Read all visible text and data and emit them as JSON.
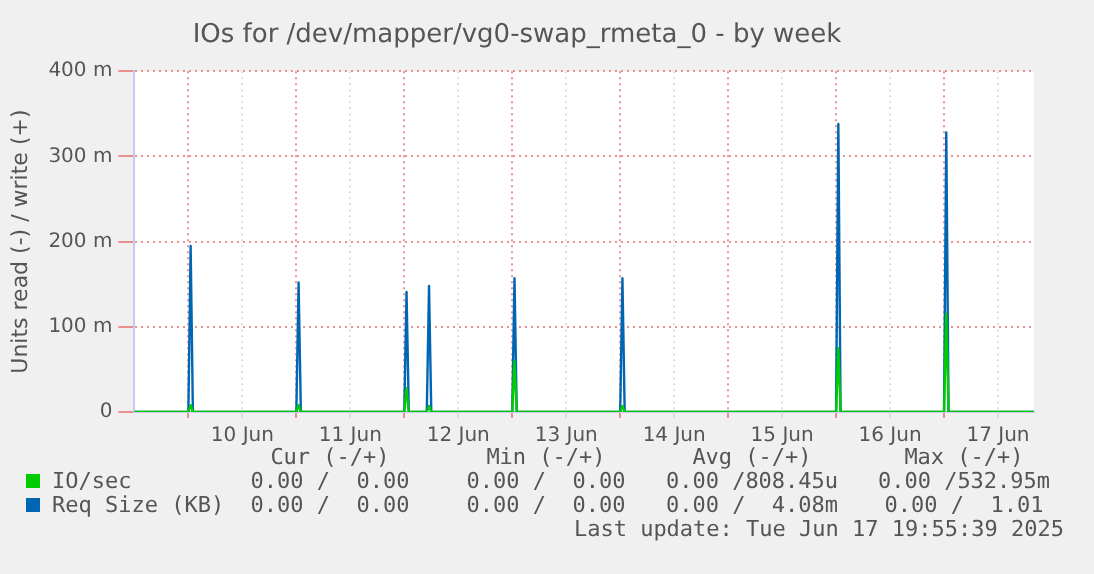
{
  "chart_data": {
    "type": "line",
    "title": "IOs for /dev/mapper/vg0-swap_rmeta_0 - by week",
    "ylabel": "Units read (-) / write (+)",
    "x": [
      "2025-06-09T12:00",
      "2025-06-10T00:00",
      "2025-06-10T00:30",
      "2025-06-10T01:00",
      "2025-06-11T00:00",
      "2025-06-11T00:30",
      "2025-06-11T01:00",
      "2025-06-12T00:00",
      "2025-06-12T00:30",
      "2025-06-12T01:00",
      "2025-06-12T05:00",
      "2025-06-12T05:30",
      "2025-06-12T06:00",
      "2025-06-13T00:00",
      "2025-06-13T00:30",
      "2025-06-13T01:00",
      "2025-06-14T00:00",
      "2025-06-14T00:30",
      "2025-06-14T01:00",
      "2025-06-16T00:00",
      "2025-06-16T00:30",
      "2025-06-16T01:00",
      "2025-06-17T00:00",
      "2025-06-17T00:30",
      "2025-06-17T01:00",
      "2025-06-17T20:00"
    ],
    "series": [
      {
        "name": "IO/sec",
        "color": "#00cc00",
        "values": [
          0,
          0,
          8,
          0,
          0,
          8,
          0,
          0,
          28,
          0,
          0,
          7,
          0,
          0,
          60,
          0,
          0,
          7,
          0,
          0,
          75,
          0,
          0,
          115,
          0,
          0
        ]
      },
      {
        "name": "Req Size (KB)",
        "color": "#0066b3",
        "values": [
          0,
          0,
          195,
          0,
          0,
          152,
          0,
          0,
          141,
          0,
          0,
          148,
          0,
          0,
          157,
          0,
          0,
          157,
          0,
          0,
          338,
          0,
          0,
          328,
          0,
          0
        ]
      }
    ],
    "xlim": [
      "2025-06-09T12:00",
      "2025-06-17T20:00"
    ],
    "xticks": [
      {
        "value": "2025-06-10T00:00",
        "label": null
      },
      {
        "value": "2025-06-10T12:00",
        "label": "10 Jun"
      },
      {
        "value": "2025-06-11T00:00",
        "label": null
      },
      {
        "value": "2025-06-11T12:00",
        "label": "11 Jun"
      },
      {
        "value": "2025-06-12T00:00",
        "label": null
      },
      {
        "value": "2025-06-12T12:00",
        "label": "12 Jun"
      },
      {
        "value": "2025-06-13T00:00",
        "label": null
      },
      {
        "value": "2025-06-13T12:00",
        "label": "13 Jun"
      },
      {
        "value": "2025-06-14T00:00",
        "label": null
      },
      {
        "value": "2025-06-14T12:00",
        "label": "14 Jun"
      },
      {
        "value": "2025-06-15T00:00",
        "label": null
      },
      {
        "value": "2025-06-15T12:00",
        "label": "15 Jun"
      },
      {
        "value": "2025-06-16T00:00",
        "label": null
      },
      {
        "value": "2025-06-16T12:00",
        "label": "16 Jun"
      },
      {
        "value": "2025-06-17T00:00",
        "label": null
      },
      {
        "value": "2025-06-17T12:00",
        "label": "17 Jun"
      }
    ],
    "ylim": [
      0,
      400
    ],
    "yticks": [
      0,
      {
        "value": 100,
        "label": "100 m"
      },
      {
        "value": 200,
        "label": "200 m"
      },
      {
        "value": 300,
        "label": "300 m"
      },
      {
        "value": 400,
        "label": "400 m"
      }
    ],
    "grid": true,
    "legend": "bottom left",
    "marker": "none",
    "line_style": "solid",
    "annotations": [
      "Cur (-/+)",
      "Min (-/+)",
      "Avg (-/+)",
      "Max (-/+)",
      "0.00 /  0.00",
      "0.00 /  0.00",
      "0.00 /808.45u",
      "0.00 /532.95m",
      "0.00 /  0.00",
      "0.00 /  0.00",
      "0.00 /  4.08m",
      "0.00 /  1.01",
      "Last update: Tue Jun 17 19:55:39 2025"
    ]
  }
}
